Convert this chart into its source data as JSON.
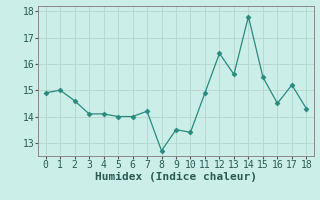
{
  "x": [
    0,
    1,
    2,
    3,
    4,
    5,
    6,
    7,
    8,
    9,
    10,
    11,
    12,
    13,
    14,
    15,
    16,
    17,
    18
  ],
  "y": [
    14.9,
    15.0,
    14.6,
    14.1,
    14.1,
    14.0,
    14.0,
    14.2,
    12.7,
    13.5,
    13.4,
    14.9,
    16.4,
    15.6,
    17.8,
    15.5,
    14.5,
    15.2,
    14.3
  ],
  "line_color": "#2a8a7e",
  "marker_color": "#2a8a7e",
  "bg_color": "#cceee8",
  "grid_color": "#b8d8d2",
  "xlabel": "Humidex (Indice chaleur)",
  "xlim": [
    -0.5,
    18.5
  ],
  "ylim": [
    12.5,
    18.2
  ],
  "yticks": [
    13,
    14,
    15,
    16,
    17,
    18
  ],
  "xticks": [
    0,
    1,
    2,
    3,
    4,
    5,
    6,
    7,
    8,
    9,
    10,
    11,
    12,
    13,
    14,
    15,
    16,
    17,
    18
  ],
  "tick_fontsize": 7,
  "label_fontsize": 8
}
